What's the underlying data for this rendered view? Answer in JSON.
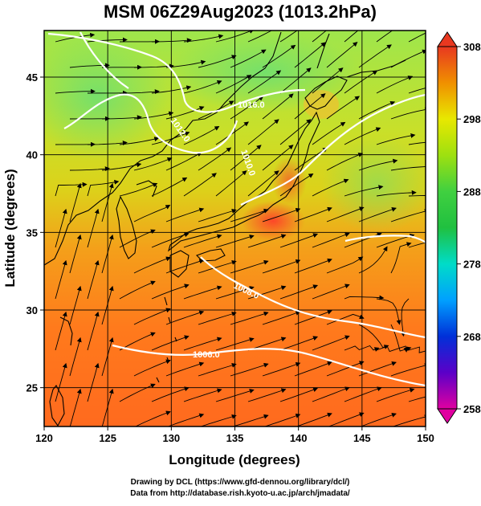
{
  "title": "MSM 06Z29Aug2023 (1013.2hPa)",
  "axes": {
    "xlabel": "Longitude (degrees)",
    "ylabel": "Latitude (degrees)",
    "xticks": [
      "120",
      "125",
      "130",
      "135",
      "140",
      "145",
      "150"
    ],
    "yticks": [
      "25",
      "30",
      "35",
      "40",
      "45"
    ]
  },
  "colorbar": {
    "ticks": [
      "308",
      "298",
      "288",
      "278",
      "268",
      "258"
    ],
    "colors": {
      "t258": "#e000a0",
      "t263": "#5b00c8",
      "t268": "#0030d8",
      "t273": "#00a0ff",
      "t278": "#00dcc8",
      "t283": "#20c040",
      "t288": "#40d040",
      "t293": "#9ee010",
      "t298": "#e8e800",
      "t303": "#f09000",
      "t308": "#e83820"
    }
  },
  "isobars": [
    {
      "label": "1016.0"
    },
    {
      "label": "1012.0"
    },
    {
      "label": "1010.0"
    },
    {
      "label": "1008.0"
    },
    {
      "label": "1006.0"
    }
  ],
  "credits": {
    "line1": "Drawing by DCL (https://www.gfd-dennou.org/library/dcl/)",
    "line2": "Data from http://database.rish.kyoto-u.ac.jp/arch/jmadata/"
  }
}
